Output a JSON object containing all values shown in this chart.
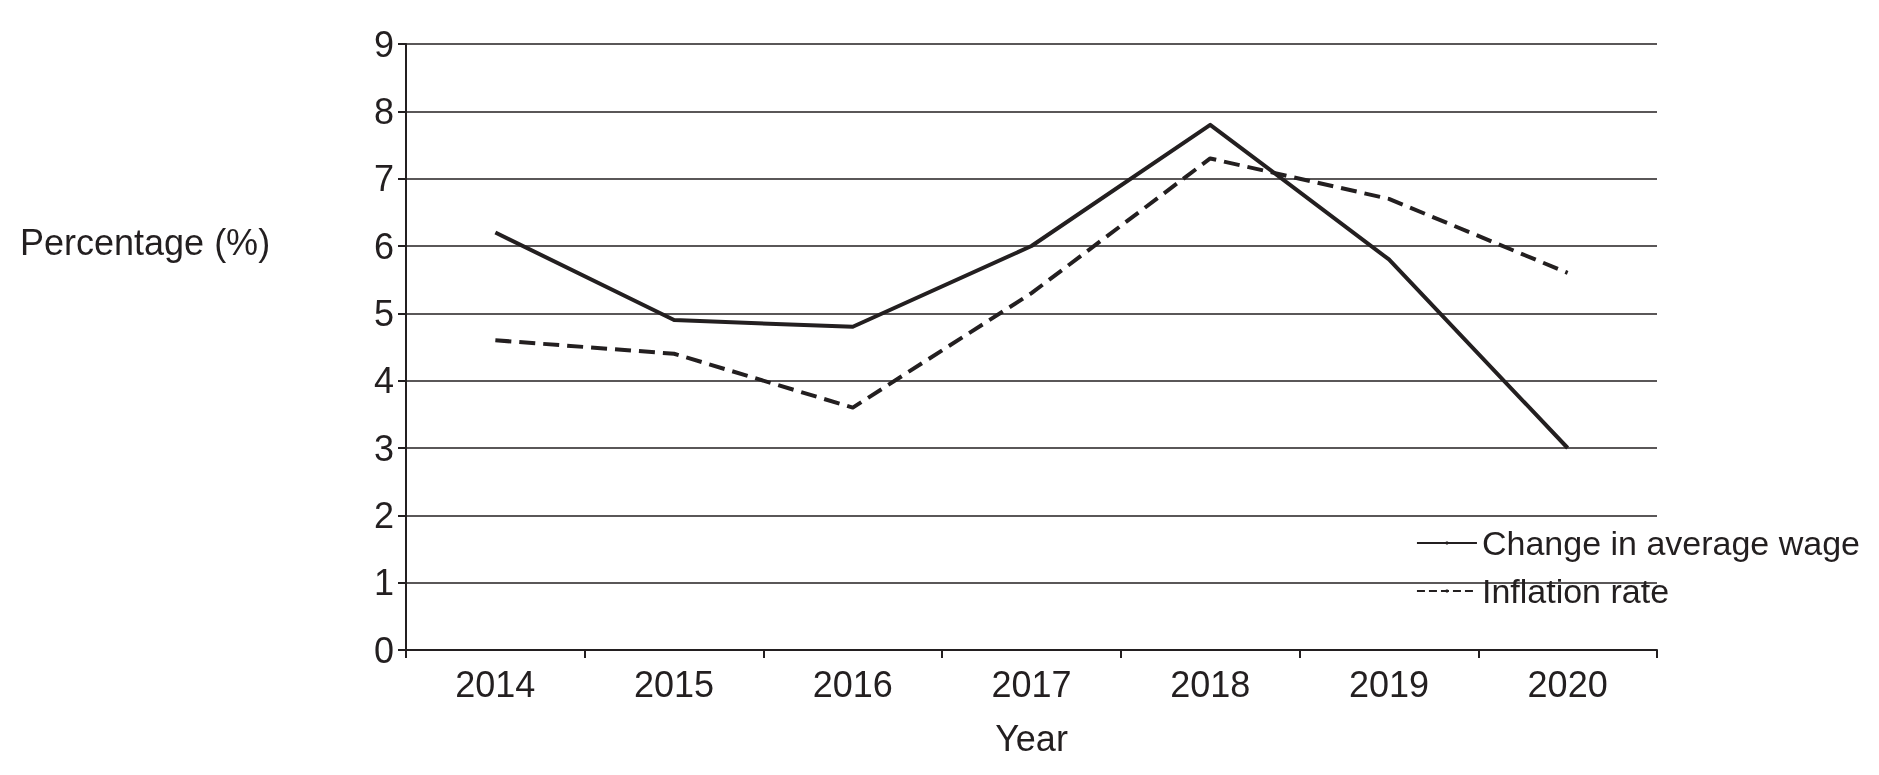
{
  "chart_data": {
    "type": "line",
    "xlabel": "Year",
    "ylabel": "Percentage (%)",
    "categories": [
      "2014",
      "2015",
      "2016",
      "2017",
      "2018",
      "2019",
      "2020"
    ],
    "series": [
      {
        "name": "Change in average wage",
        "color": "#231f20",
        "line_style": "solid",
        "values": [
          6.2,
          4.9,
          4.8,
          6.0,
          7.8,
          5.8,
          3.0
        ]
      },
      {
        "name": "Inflation rate",
        "color": "#231f20",
        "line_style": "dashed",
        "values": [
          4.6,
          4.4,
          3.6,
          5.3,
          7.3,
          6.7,
          5.6
        ]
      }
    ],
    "ylim": [
      0,
      9
    ],
    "yticks": [
      0,
      1,
      2,
      3,
      4,
      5,
      6,
      7,
      8,
      9
    ],
    "grid": "y",
    "legend": "bottom right",
    "marker": "none"
  }
}
